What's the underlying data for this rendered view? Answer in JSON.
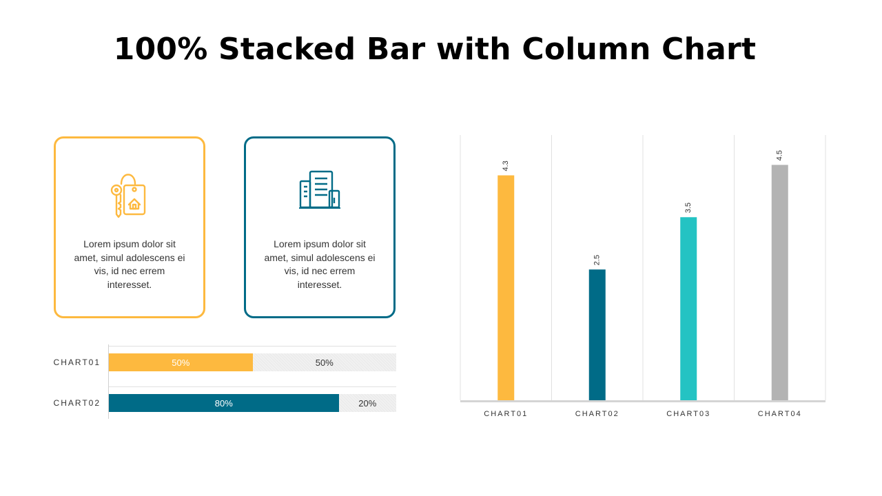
{
  "title": "100% Stacked Bar with Column Chart",
  "cards": [
    {
      "icon": "key-with-house-tag-icon",
      "color": "#FDB93F",
      "text": "Lorem ipsum dolor sit amet, simul adolescens ei vis, id nec errem interesset."
    },
    {
      "icon": "office-buildings-icon",
      "color": "#006B87",
      "text": "Lorem ipsum dolor sit amet, simul adolescens ei vis, id nec errem interesset."
    }
  ],
  "chart_data": [
    {
      "type": "bar",
      "orientation": "horizontal",
      "stacked": "percent",
      "categories": [
        "CHART01",
        "CHART02"
      ],
      "series": [
        {
          "values": [
            50,
            80
          ],
          "labels": [
            "50%",
            "80%"
          ],
          "colors": [
            "#FDB93F",
            "#006B87"
          ]
        },
        {
          "values": [
            50,
            20
          ],
          "labels": [
            "50%",
            "20%"
          ],
          "color": "#EDEDED"
        }
      ],
      "xlim": [
        0,
        100
      ]
    },
    {
      "type": "bar",
      "orientation": "vertical",
      "categories": [
        "CHART01",
        "CHART02",
        "CHART03",
        "CHART04"
      ],
      "values": [
        4.3,
        2.5,
        3.5,
        4.5
      ],
      "value_labels": [
        "4.3",
        "2.5",
        "3.5",
        "4.5"
      ],
      "colors": [
        "#FDB93F",
        "#006B87",
        "#24C3C3",
        "#B3B3B3"
      ],
      "ylim": [
        0,
        5
      ],
      "grid": true
    }
  ]
}
